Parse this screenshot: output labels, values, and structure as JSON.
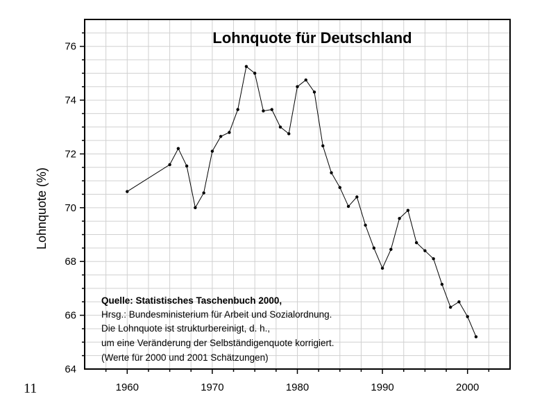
{
  "page": {
    "slide_number": "11"
  },
  "chart_data": {
    "type": "line",
    "title": "Lohnquote für Deutschland",
    "xlabel": "",
    "ylabel": "Lohnquote (%)",
    "xlim": [
      1955,
      2005
    ],
    "ylim": [
      64,
      77
    ],
    "x_ticks": [
      1960,
      1970,
      1980,
      1990,
      2000
    ],
    "y_ticks": [
      64,
      66,
      68,
      70,
      72,
      74,
      76
    ],
    "grid": true,
    "series": [
      {
        "x": [
          1960,
          1965,
          1966,
          1967,
          1968,
          1969,
          1970,
          1971,
          1972,
          1973,
          1974,
          1975,
          1976,
          1977,
          1978,
          1979,
          1980,
          1981,
          1982,
          1983,
          1984,
          1985,
          1986,
          1987,
          1988,
          1989,
          1990,
          1991,
          1992,
          1993,
          1994,
          1995,
          1996,
          1997,
          1998,
          1999,
          2000,
          2001
        ],
        "values": [
          70.6,
          71.6,
          72.2,
          71.55,
          70.0,
          70.55,
          72.1,
          72.65,
          72.8,
          73.65,
          75.25,
          75.0,
          73.6,
          73.65,
          73.0,
          72.75,
          74.5,
          74.75,
          74.3,
          72.3,
          71.3,
          70.75,
          70.05,
          70.4,
          69.35,
          68.5,
          67.75,
          68.45,
          69.6,
          69.9,
          68.7,
          68.4,
          68.1,
          67.15,
          66.3,
          66.5,
          65.95,
          65.2
        ]
      }
    ],
    "annotation": {
      "lines": [
        "Quelle: Statistisches Taschenbuch 2000,",
        "Hrsg.: Bundesministerium für Arbeit und Sozialordnung.",
        "Die Lohnquote ist strukturbereinigt, d. h.,",
        "um eine Veränderung der Selbständigenquote korrigiert.",
        "(Werte für 2000 und 2001 Schätzungen)"
      ]
    }
  }
}
